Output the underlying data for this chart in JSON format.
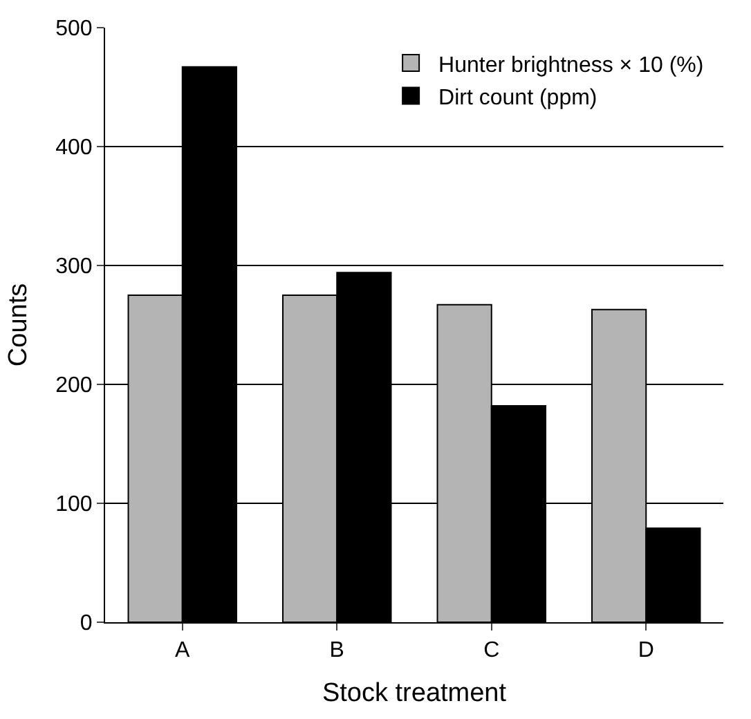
{
  "chart_data": {
    "type": "bar",
    "xlabel": "Stock treatment",
    "ylabel": "Counts",
    "categories": [
      "A",
      "B",
      "C",
      "D"
    ],
    "series": [
      {
        "name": "Hunter brightness × 10 (%)",
        "color": "#b4b4b4",
        "values": [
          275,
          275,
          267,
          263
        ]
      },
      {
        "name": "Dirt count (ppm)",
        "color": "#000000",
        "values": [
          467,
          294,
          182,
          79
        ]
      }
    ],
    "ylim": [
      0,
      500
    ],
    "yticks": [
      0,
      100,
      200,
      300,
      400,
      500
    ],
    "grid": "y",
    "legend": "top right"
  }
}
